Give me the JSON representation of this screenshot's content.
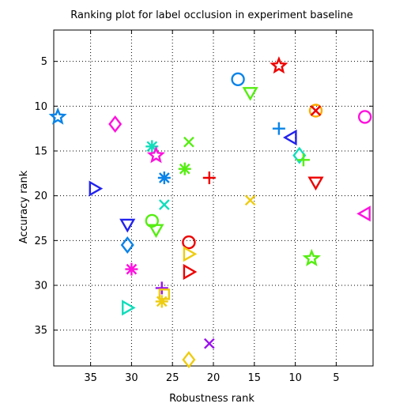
{
  "chart_data": {
    "type": "scatter",
    "title": "Ranking plot for label occlusion in experiment baseline",
    "xlabel": "Robustness rank",
    "ylabel": "Accuracy rank",
    "xlim": [
      39.5,
      0.5
    ],
    "ylim": [
      39,
      1.5
    ],
    "x_reversed": true,
    "y_reversed": true,
    "grid": true,
    "x_ticks": [
      35,
      30,
      25,
      20,
      15,
      10,
      5
    ],
    "y_ticks": [
      5,
      10,
      15,
      20,
      25,
      30,
      35
    ],
    "colors": {
      "blue": "#0a84e8",
      "red": "#ee0000",
      "green": "#55ee11",
      "magenta": "#ff11dd",
      "cyan": "#11ddbb",
      "yellow": "#eecc11",
      "orange": "#ffaa00",
      "navy": "#2222ee",
      "purple": "#9a11ee"
    },
    "points": [
      {
        "x": 17,
        "y": 7,
        "marker": "circle",
        "color": "blue"
      },
      {
        "x": 12,
        "y": 5.5,
        "marker": "star",
        "color": "red"
      },
      {
        "x": 15.5,
        "y": 8.5,
        "marker": "triangle-down",
        "color": "green"
      },
      {
        "x": 7.5,
        "y": 10.5,
        "marker": "circle",
        "color": "orange"
      },
      {
        "x": 7.5,
        "y": 10.5,
        "marker": "x",
        "color": "red"
      },
      {
        "x": 1.5,
        "y": 11.2,
        "marker": "circle",
        "color": "magenta"
      },
      {
        "x": 39,
        "y": 11.2,
        "marker": "star",
        "color": "blue"
      },
      {
        "x": 32,
        "y": 12,
        "marker": "diamond",
        "color": "magenta"
      },
      {
        "x": 12,
        "y": 12.5,
        "marker": "plus",
        "color": "blue"
      },
      {
        "x": 10.5,
        "y": 13.5,
        "marker": "triangle-left",
        "color": "navy"
      },
      {
        "x": 23,
        "y": 14,
        "marker": "x",
        "color": "green"
      },
      {
        "x": 27.5,
        "y": 14.5,
        "marker": "asterisk",
        "color": "cyan"
      },
      {
        "x": 27,
        "y": 15.5,
        "marker": "star",
        "color": "magenta"
      },
      {
        "x": 9.5,
        "y": 15.5,
        "marker": "diamond",
        "color": "cyan"
      },
      {
        "x": 9,
        "y": 16,
        "marker": "plus",
        "color": "green"
      },
      {
        "x": 23.5,
        "y": 17,
        "marker": "asterisk",
        "color": "green"
      },
      {
        "x": 26,
        "y": 18,
        "marker": "asterisk",
        "color": "blue"
      },
      {
        "x": 20.5,
        "y": 18,
        "marker": "plus",
        "color": "red"
      },
      {
        "x": 7.5,
        "y": 18.5,
        "marker": "triangle-down",
        "color": "red"
      },
      {
        "x": 34.5,
        "y": 19.2,
        "marker": "triangle-right",
        "color": "navy"
      },
      {
        "x": 15.5,
        "y": 20.5,
        "marker": "x",
        "color": "yellow"
      },
      {
        "x": 26,
        "y": 21,
        "marker": "x",
        "color": "cyan"
      },
      {
        "x": 1.5,
        "y": 22,
        "marker": "triangle-left",
        "color": "magenta"
      },
      {
        "x": 27.5,
        "y": 22.8,
        "marker": "circle",
        "color": "green"
      },
      {
        "x": 30.5,
        "y": 23.2,
        "marker": "triangle-down",
        "color": "navy"
      },
      {
        "x": 27,
        "y": 23.8,
        "marker": "triangle-down",
        "color": "green"
      },
      {
        "x": 30.5,
        "y": 25.5,
        "marker": "diamond",
        "color": "blue"
      },
      {
        "x": 23,
        "y": 25.2,
        "marker": "circle",
        "color": "red"
      },
      {
        "x": 23,
        "y": 26.5,
        "marker": "triangle-right",
        "color": "yellow"
      },
      {
        "x": 8,
        "y": 27,
        "marker": "star",
        "color": "green"
      },
      {
        "x": 30,
        "y": 28.2,
        "marker": "asterisk",
        "color": "magenta"
      },
      {
        "x": 23,
        "y": 28.5,
        "marker": "triangle-right",
        "color": "red"
      },
      {
        "x": 26.3,
        "y": 30.3,
        "marker": "plus",
        "color": "purple"
      },
      {
        "x": 26,
        "y": 31,
        "marker": "square",
        "color": "yellow"
      },
      {
        "x": 26.3,
        "y": 31.8,
        "marker": "asterisk",
        "color": "yellow"
      },
      {
        "x": 30.5,
        "y": 32.5,
        "marker": "triangle-right",
        "color": "cyan"
      },
      {
        "x": 20.5,
        "y": 36.5,
        "marker": "x",
        "color": "purple"
      },
      {
        "x": 23,
        "y": 38.3,
        "marker": "diamond",
        "color": "yellow"
      }
    ]
  }
}
